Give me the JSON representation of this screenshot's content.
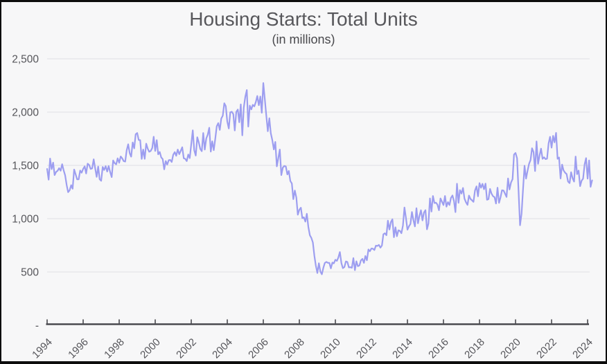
{
  "chart_data": {
    "type": "line",
    "title": "Housing Starts: Total Units",
    "subtitle": "(in millions)",
    "xlabel": "",
    "ylabel": "",
    "frequency": "monthly",
    "x_start": "1994-01",
    "x_end": "2024-04",
    "ylim": [
      0,
      2500
    ],
    "grid": "horizontal",
    "legend": "none",
    "y_ticks": [
      {
        "value": 0,
        "label": "-"
      },
      {
        "value": 500,
        "label": "500"
      },
      {
        "value": 1000,
        "label": "1,000"
      },
      {
        "value": 1500,
        "label": "1,500"
      },
      {
        "value": 2000,
        "label": "2,000"
      },
      {
        "value": 2500,
        "label": "2,500"
      }
    ],
    "x_ticks": [
      {
        "year": 1994,
        "label": "1994"
      },
      {
        "year": 1996,
        "label": "1996"
      },
      {
        "year": 1998,
        "label": "1998"
      },
      {
        "year": 2000,
        "label": "2000"
      },
      {
        "year": 2002,
        "label": "2002"
      },
      {
        "year": 2004,
        "label": "2004"
      },
      {
        "year": 2006,
        "label": "2006"
      },
      {
        "year": 2008,
        "label": "2008"
      },
      {
        "year": 2010,
        "label": "2010"
      },
      {
        "year": 2012,
        "label": "2012"
      },
      {
        "year": 2014,
        "label": "2014"
      },
      {
        "year": 2016,
        "label": "2016"
      },
      {
        "year": 2018,
        "label": "2018"
      },
      {
        "year": 2020,
        "label": "2020"
      },
      {
        "year": 2022,
        "label": "2022"
      },
      {
        "year": 2024,
        "label": "2024"
      }
    ],
    "values": [
      1467,
      1366,
      1564,
      1465,
      1526,
      1409,
      1439,
      1450,
      1474,
      1450,
      1511,
      1455,
      1407,
      1316,
      1249,
      1267,
      1314,
      1281,
      1461,
      1416,
      1369,
      1369,
      1452,
      1431,
      1467,
      1491,
      1424,
      1516,
      1504,
      1467,
      1472,
      1557,
      1475,
      1392,
      1489,
      1370,
      1355,
      1486,
      1457,
      1492,
      1442,
      1494,
      1437,
      1390,
      1546,
      1520,
      1510,
      1566,
      1525,
      1584,
      1567,
      1540,
      1536,
      1641,
      1698,
      1614,
      1582,
      1715,
      1660,
      1792,
      1804,
      1738,
      1737,
      1561,
      1649,
      1562,
      1704,
      1657,
      1628,
      1636,
      1663,
      1769,
      1636,
      1737,
      1604,
      1626,
      1575,
      1559,
      1463,
      1541,
      1507,
      1549,
      1551,
      1532,
      1600,
      1625,
      1590,
      1649,
      1605,
      1636,
      1670,
      1567,
      1562,
      1540,
      1602,
      1568,
      1698,
      1829,
      1642,
      1592,
      1764,
      1717,
      1655,
      1633,
      1804,
      1648,
      1753,
      1788,
      1853,
      1629,
      1726,
      1643,
      1751,
      1867,
      1897,
      1833,
      1939,
      1967,
      2083,
      2057,
      1911,
      1846,
      1998,
      2003,
      1981,
      1828,
      2002,
      2024,
      1905,
      2072,
      1782,
      2042,
      2144,
      2207,
      1864,
      2061,
      2025,
      2068,
      2054,
      2095,
      2151,
      2065,
      2147,
      1994,
      2273,
      2119,
      1969,
      1821,
      1942,
      1802,
      1737,
      1650,
      1720,
      1491,
      1570,
      1649,
      1409,
      1480,
      1495,
      1490,
      1415,
      1448,
      1354,
      1330,
      1183,
      1264,
      1197,
      1037,
      1084,
      1103,
      1005,
      1013,
      973,
      1046,
      923,
      844,
      820,
      777,
      652,
      560,
      490,
      582,
      505,
      478,
      540,
      585,
      594,
      586,
      585,
      534,
      588,
      581,
      614,
      604,
      636,
      687,
      583,
      536,
      546,
      599,
      594,
      543,
      545,
      539,
      630,
      517,
      600,
      554,
      561,
      608,
      623,
      585,
      650,
      610,
      711,
      694,
      720,
      718,
      706,
      747,
      744,
      754,
      728,
      749,
      854,
      863,
      845,
      982,
      898,
      969,
      994,
      826,
      919,
      835,
      891,
      885,
      863,
      936,
      1105,
      1010,
      897,
      928,
      950,
      1063,
      984,
      927,
      1098,
      957,
      1026,
      1079,
      984,
      1057,
      1080,
      900,
      954,
      1190,
      1067,
      1213,
      1147,
      1150,
      1132,
      1079,
      1190,
      1160,
      1128,
      1213,
      1113,
      1155,
      1128,
      1195,
      1218,
      1164,
      1062,
      1328,
      1149,
      1268,
      1236,
      1288,
      1189,
      1154,
      1129,
      1217,
      1185,
      1172,
      1158,
      1265,
      1303,
      1210,
      1334,
      1290,
      1327,
      1276,
      1329,
      1177,
      1184,
      1279,
      1236,
      1211,
      1202,
      1142,
      1291,
      1149,
      1199,
      1267,
      1264,
      1235,
      1204,
      1377,
      1274,
      1340,
      1371,
      1601,
      1617,
      1567,
      1269,
      938,
      1046,
      1273,
      1497,
      1376,
      1448,
      1514,
      1551,
      1661,
      1625,
      1447,
      1725,
      1514,
      1594,
      1657,
      1562,
      1576,
      1559,
      1563,
      1706,
      1768,
      1666,
      1777,
      1716,
      1805,
      1562,
      1575,
      1377,
      1508,
      1453,
      1432,
      1419,
      1348,
      1334,
      1436,
      1380,
      1348,
      1583,
      1418,
      1451,
      1305,
      1356,
      1376,
      1510,
      1568,
      1376,
      1546,
      1299,
      1360
    ],
    "colors": {
      "line": "#9d9ef0",
      "grid": "#e4e4e7",
      "axis": "#4a4a4f",
      "tick_text": "#55555a",
      "title": "#57575b",
      "subtitle": "#48484c",
      "background": "#f7f7f8",
      "frame": "#0d0d0d"
    }
  }
}
